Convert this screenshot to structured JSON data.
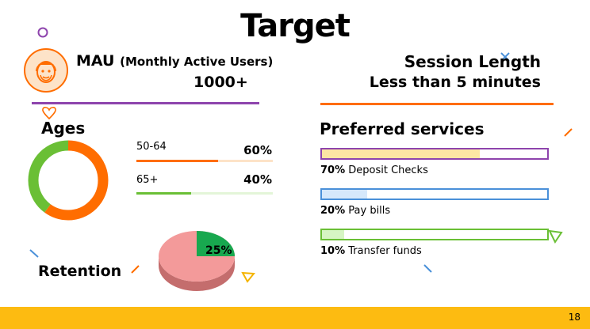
{
  "title": "Target",
  "mau": {
    "label": "MAU",
    "label_detail": "(Monthly Active Users)",
    "value": "1000+"
  },
  "session": {
    "label": "Session Length",
    "value": "Less than 5 minutes"
  },
  "ages": {
    "label": "Ages",
    "groups": [
      {
        "range": "50-64",
        "percent_text": "60%",
        "share": 0.6,
        "color": "#ff6d00"
      },
      {
        "range": "65+",
        "percent_text": "40%",
        "share": 0.4,
        "color": "#6abf35"
      }
    ]
  },
  "retention": {
    "label": "Retention",
    "percent_text": "25%",
    "share": 0.25,
    "colors": {
      "slice": "#18a84f",
      "rest": "#f39a9a",
      "rest_side": "#c46d6d"
    }
  },
  "services": {
    "label": "Preferred services",
    "items": [
      {
        "percent_text": "70%",
        "name": "Deposit Checks",
        "share": 0.7,
        "border": "#8e44ad",
        "fill": "#fde6a4"
      },
      {
        "percent_text": "20%",
        "name": "Pay bills",
        "share": 0.2,
        "border": "#4a90d9",
        "fill": "#d6e8fb"
      },
      {
        "percent_text": "10%",
        "name": "Transfer funds",
        "share": 0.1,
        "border": "#6abf35",
        "fill": "#d6f5c3"
      }
    ]
  },
  "colors": {
    "orange": "#ff6d00",
    "purple": "#8e44ad",
    "green": "#6abf35",
    "footer": "#fdbb11"
  },
  "page_number": "18"
}
